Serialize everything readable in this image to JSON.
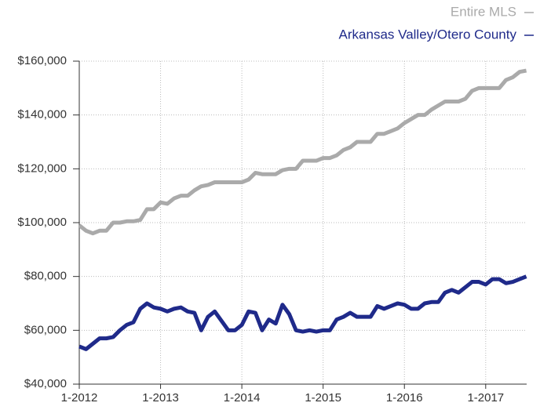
{
  "chart_data": {
    "type": "line",
    "categories": [
      "1-2012",
      null,
      null,
      null,
      null,
      null,
      null,
      null,
      null,
      null,
      null,
      null,
      "1-2013",
      null,
      null,
      null,
      null,
      null,
      null,
      null,
      null,
      null,
      null,
      null,
      "1-2014",
      null,
      null,
      null,
      null,
      null,
      null,
      null,
      null,
      null,
      null,
      null,
      "1-2015",
      null,
      null,
      null,
      null,
      null,
      null,
      null,
      null,
      null,
      null,
      null,
      "1-2016",
      null,
      null,
      null,
      null,
      null,
      null,
      null,
      null,
      null,
      null,
      null,
      "1-2017",
      null,
      null,
      null,
      null,
      null,
      null
    ],
    "series": [
      {
        "name": "Entire MLS",
        "color": "#aaaaaa",
        "values": [
          99000,
          97000,
          96000,
          97000,
          97000,
          100000,
          100000,
          100500,
          100500,
          101000,
          105000,
          105000,
          107500,
          107000,
          109000,
          110000,
          110000,
          112000,
          113500,
          114000,
          115000,
          115000,
          115000,
          115000,
          115000,
          116000,
          118500,
          118000,
          118000,
          118000,
          119500,
          120000,
          120000,
          123000,
          123000,
          123000,
          124000,
          124000,
          125000,
          127000,
          128000,
          130000,
          130000,
          130000,
          133000,
          133000,
          134000,
          135000,
          137000,
          138500,
          140000,
          140000,
          142000,
          143500,
          145000,
          145000,
          145000,
          146000,
          149000,
          150000,
          150000,
          150000,
          150000,
          153000,
          154000,
          156000,
          156500
        ]
      },
      {
        "name": "Arkansas Valley/Otero County",
        "color": "#1f2a8a",
        "values": [
          54000,
          53000,
          55000,
          57000,
          57000,
          57500,
          60000,
          62000,
          63000,
          68000,
          70000,
          68500,
          68000,
          67000,
          68000,
          68500,
          67000,
          66500,
          60000,
          65000,
          67000,
          63500,
          60000,
          60000,
          62000,
          67000,
          66500,
          60000,
          64000,
          62500,
          69500,
          66000,
          60000,
          59500,
          60000,
          59500,
          60000,
          60000,
          64000,
          65000,
          66500,
          65000,
          65000,
          65000,
          69000,
          68000,
          69000,
          70000,
          69500,
          68000,
          68000,
          70000,
          70500,
          70500,
          74000,
          75000,
          74000,
          76000,
          78000,
          78000,
          77000,
          79000,
          79000,
          77500,
          78000,
          79000,
          80000
        ]
      }
    ],
    "ylim": [
      40000,
      160000
    ],
    "yticks": [
      {
        "value": 40000,
        "label": "$40,000"
      },
      {
        "value": 60000,
        "label": "$60,000"
      },
      {
        "value": 80000,
        "label": "$80,000"
      },
      {
        "value": 100000,
        "label": "$100,000"
      },
      {
        "value": 120000,
        "label": "$120,000"
      },
      {
        "value": 140000,
        "label": "$140,000"
      },
      {
        "value": 160000,
        "label": "$160,000"
      }
    ],
    "grid": true
  }
}
